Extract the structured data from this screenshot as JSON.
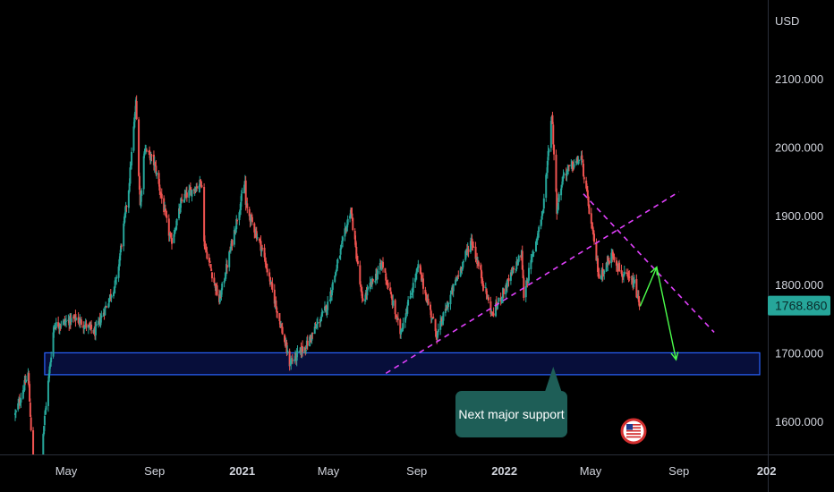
{
  "chart_data": {
    "type": "candlestick",
    "instrument_unit": "USD",
    "ylim": [
      1560,
      2150
    ],
    "y_ticks": [
      1600,
      1700,
      1800,
      1900,
      2000,
      2100
    ],
    "y_tick_labels": [
      "1600.000",
      "1700.000",
      "1800.000",
      "1900.000",
      "2000.000",
      "2100.000"
    ],
    "x_range": [
      "2020-02-20",
      "2023-01-20"
    ],
    "x_ticks": [
      {
        "date": "2020-05-01",
        "label": "May",
        "bold": false
      },
      {
        "date": "2020-09-01",
        "label": "Sep",
        "bold": false
      },
      {
        "date": "2021-01-01",
        "label": "2021",
        "bold": true
      },
      {
        "date": "2021-05-01",
        "label": "May",
        "bold": false
      },
      {
        "date": "2021-09-01",
        "label": "Sep",
        "bold": false
      },
      {
        "date": "2022-01-01",
        "label": "2022",
        "bold": true
      },
      {
        "date": "2022-05-01",
        "label": "May",
        "bold": false
      },
      {
        "date": "2022-09-01",
        "label": "Sep",
        "bold": false
      },
      {
        "date": "2023-01-01",
        "label": "202",
        "bold": true
      }
    ],
    "last_price": 1768.86,
    "last_price_label": "1768.860",
    "price_path": [
      [
        "2020-02-20",
        1610
      ],
      [
        "2020-03-09",
        1670
      ],
      [
        "2020-03-19",
        1470
      ],
      [
        "2020-04-14",
        1740
      ],
      [
        "2020-05-15",
        1750
      ],
      [
        "2020-06-10",
        1730
      ],
      [
        "2020-07-10",
        1805
      ],
      [
        "2020-07-27",
        1940
      ],
      [
        "2020-08-06",
        2065
      ],
      [
        "2020-08-12",
        1915
      ],
      [
        "2020-08-18",
        2000
      ],
      [
        "2020-09-01",
        1975
      ],
      [
        "2020-09-24",
        1860
      ],
      [
        "2020-10-10",
        1925
      ],
      [
        "2020-11-06",
        1950
      ],
      [
        "2020-11-09",
        1860
      ],
      [
        "2020-11-30",
        1775
      ],
      [
        "2021-01-05",
        1950
      ],
      [
        "2021-01-06",
        1915
      ],
      [
        "2021-01-29",
        1850
      ],
      [
        "2021-02-26",
        1730
      ],
      [
        "2021-03-08",
        1685
      ],
      [
        "2021-03-31",
        1710
      ],
      [
        "2021-04-30",
        1770
      ],
      [
        "2021-06-01",
        1910
      ],
      [
        "2021-06-17",
        1775
      ],
      [
        "2021-07-15",
        1830
      ],
      [
        "2021-08-09",
        1730
      ],
      [
        "2021-09-03",
        1825
      ],
      [
        "2021-09-29",
        1725
      ],
      [
        "2021-10-22",
        1795
      ],
      [
        "2021-11-16",
        1865
      ],
      [
        "2021-12-15",
        1755
      ],
      [
        "2022-01-25",
        1845
      ],
      [
        "2022-01-28",
        1785
      ],
      [
        "2022-02-24",
        1910
      ],
      [
        "2022-03-08",
        2050
      ],
      [
        "2022-03-15",
        1910
      ],
      [
        "2022-03-24",
        1960
      ],
      [
        "2022-04-18",
        1985
      ],
      [
        "2022-05-13",
        1810
      ],
      [
        "2022-06-01",
        1845
      ],
      [
        "2022-06-13",
        1815
      ],
      [
        "2022-07-01",
        1800
      ],
      [
        "2022-07-08",
        1769
      ]
    ],
    "support_zone": {
      "low": 1668,
      "high": 1700,
      "from": "2020-04-01",
      "to": "2023-01-20"
    },
    "trendlines": [
      {
        "name": "ascending-trendline",
        "style": "dashed",
        "color": "#e040fb",
        "from": [
          "2021-07-20",
          1670
        ],
        "to": [
          "2022-09-01",
          1935
        ]
      },
      {
        "name": "descending-trendline",
        "style": "dashed",
        "color": "#e040fb",
        "from": [
          "2022-04-21",
          1932
        ],
        "to": [
          "2022-10-20",
          1730
        ]
      }
    ],
    "projection_arrows": [
      {
        "name": "projection-up-arrow",
        "color": "#4cff4c",
        "from": [
          "2022-07-09",
          1768
        ],
        "to": [
          "2022-08-01",
          1825
        ]
      },
      {
        "name": "projection-down-arrow",
        "color": "#4cff4c",
        "from": [
          "2022-08-01",
          1825
        ],
        "to": [
          "2022-08-28",
          1690
        ]
      }
    ],
    "annotation": {
      "text": "Next major support",
      "pointer_date": "2022-03-10",
      "pointer_price": 1685
    },
    "colors": {
      "up": "#26a69a",
      "down": "#ef5350",
      "support_border": "#2962ff",
      "support_fill": "#0d1a6a",
      "price_tag": "#26a69a",
      "callout": "#1e5e57"
    }
  }
}
